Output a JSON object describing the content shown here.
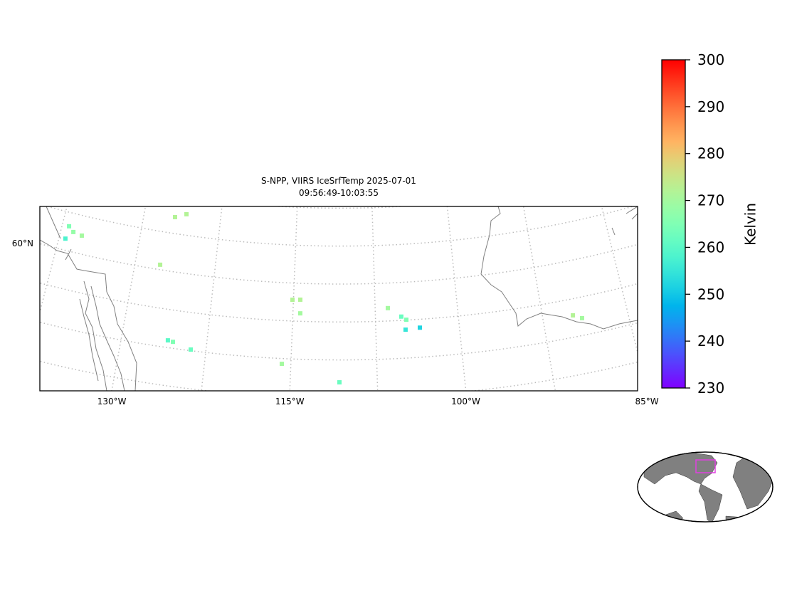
{
  "title_lines": [
    "S-NPP, VIIRS IceSrfTemp 2025-07-01",
    "09:56:49-10:03:55"
  ],
  "lon_ticks": [
    {
      "value": -130,
      "label": "130°W"
    },
    {
      "value": -115,
      "label": "115°W"
    },
    {
      "value": -100,
      "label": "100°W"
    },
    {
      "value": -85,
      "label": "85°W"
    }
  ],
  "lat_ticks": [
    {
      "value": 60,
      "label": "60°N"
    }
  ],
  "colorbar": {
    "label": "Kelvin",
    "cmap": "rainbow",
    "lim": [
      230,
      300
    ],
    "ticks": [
      230,
      240,
      250,
      260,
      270,
      280,
      290,
      300
    ]
  },
  "points": [
    {
      "lon": -136.84,
      "lat": 60.64,
      "value": 265
    },
    {
      "lon": -136.31,
      "lat": 60.52,
      "value": 268
    },
    {
      "lon": -135.45,
      "lat": 60.48,
      "value": 270
    },
    {
      "lon": -136.89,
      "lat": 60.3,
      "value": 258
    },
    {
      "lon": -126.96,
      "lat": 61.43,
      "value": 272
    },
    {
      "lon": -125.89,
      "lat": 61.55,
      "value": 272
    },
    {
      "lon": -127.66,
      "lat": 60.13,
      "value": 272
    },
    {
      "lon": -115.09,
      "lat": 59.56,
      "value": 272
    },
    {
      "lon": -114.37,
      "lat": 59.57,
      "value": 272
    },
    {
      "lon": -114.33,
      "lat": 59.21,
      "value": 270
    },
    {
      "lon": -106.34,
      "lat": 59.34,
      "value": 270
    },
    {
      "lon": -105.15,
      "lat": 59.1,
      "value": 262
    },
    {
      "lon": -104.71,
      "lat": 59.01,
      "value": 265
    },
    {
      "lon": -104.83,
      "lat": 58.75,
      "value": 255
    },
    {
      "lon": -103.54,
      "lat": 58.78,
      "value": 252
    },
    {
      "lon": -125.93,
      "lat": 58.19,
      "value": 260
    },
    {
      "lon": -125.47,
      "lat": 58.17,
      "value": 265
    },
    {
      "lon": -123.83,
      "lat": 58.03,
      "value": 262
    },
    {
      "lon": -115.79,
      "lat": 57.86,
      "value": 270
    },
    {
      "lon": -110.76,
      "lat": 57.41,
      "value": 262
    },
    {
      "lon": -89.81,
      "lat": 58.57,
      "value": 272
    },
    {
      "lon": -89.06,
      "lat": 58.45,
      "value": 270
    }
  ]
}
